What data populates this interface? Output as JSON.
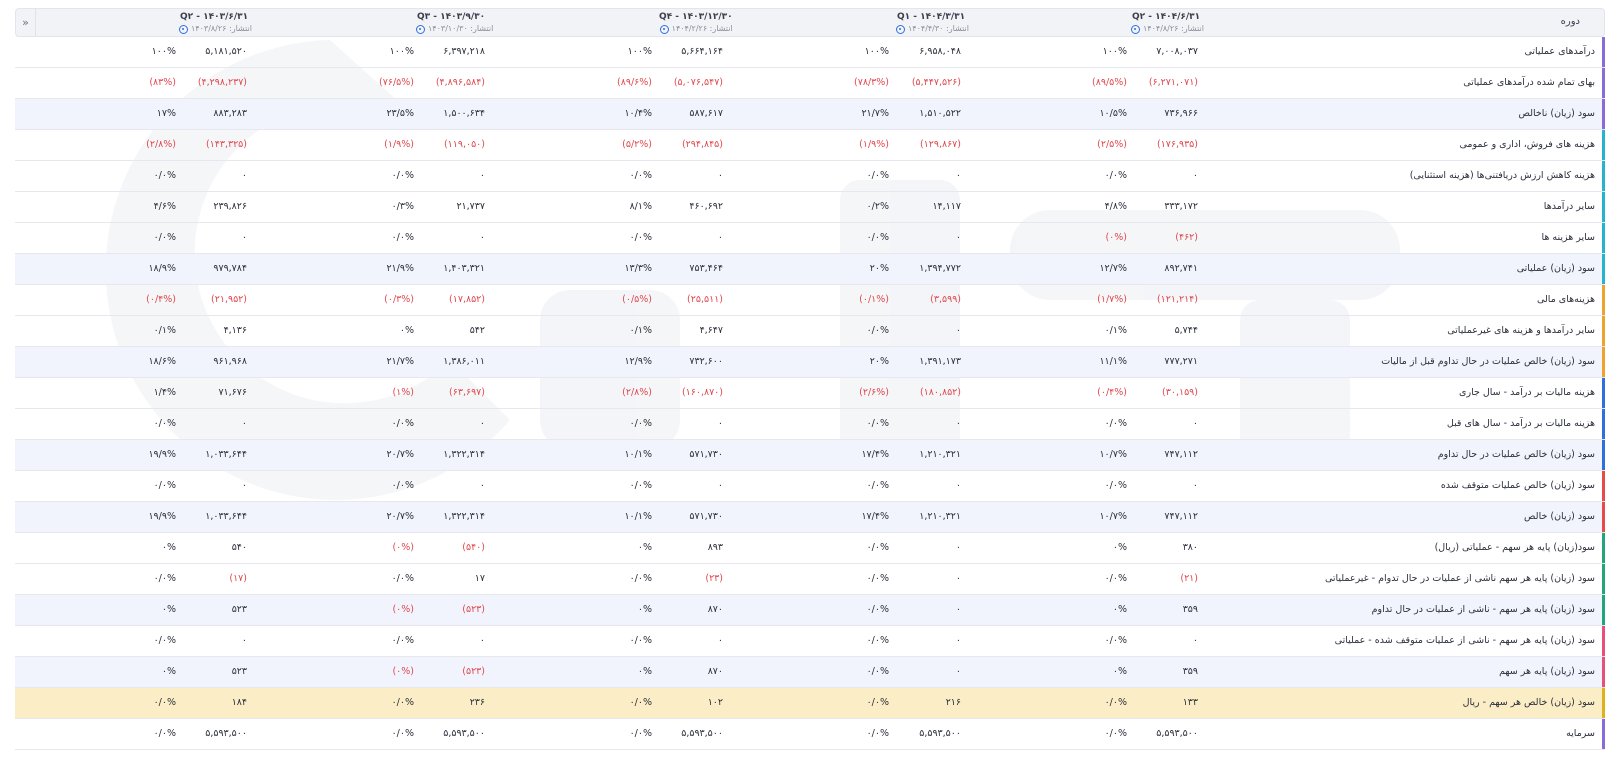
{
  "header": {
    "collapse_glyph": "»",
    "period_label": "دوره",
    "periods": [
      {
        "title": "Q۲ - ۱۴۰۴/۶/۳۱",
        "published": "انتشار: ۱۴۰۴/۸/۲۶"
      },
      {
        "title": "Q۱ - ۱۴۰۴/۳/۳۱",
        "published": "انتشار: ۱۴۰۴/۴/۳۰"
      },
      {
        "title": "Q۴ - ۱۴۰۳/۱۲/۳۰",
        "published": "انتشار: ۱۴۰۴/۲/۲۶"
      },
      {
        "title": "Q۳ - ۱۴۰۳/۹/۳۰",
        "published": "انتشار: ۱۴۰۳/۱۰/۳۰"
      },
      {
        "title": "Q۲ - ۱۴۰۳/۶/۳۱",
        "published": "انتشار: ۱۴۰۳/۸/۲۶"
      }
    ]
  },
  "colors": {
    "negative": "#e0484e",
    "alt_row": "#f1f4fd",
    "highlight_row": "#fbeec6",
    "publish_icon": "#2f6fe0"
  },
  "rows": [
    {
      "label": "درآمدهای عملیاتی",
      "bar": "#8b6bd9",
      "style": "",
      "cells": [
        [
          "۷,۰۰۸,۰۳۷",
          "۱۰۰%"
        ],
        [
          "۶,۹۵۸,۰۴۸",
          "۱۰۰%"
        ],
        [
          "۵,۶۶۴,۱۶۴",
          "۱۰۰%"
        ],
        [
          "۶,۳۹۷,۲۱۸",
          "۱۰۰%"
        ],
        [
          "۵,۱۸۱,۵۲۰",
          "۱۰۰%"
        ]
      ]
    },
    {
      "label": "بهای تمام شده درآمدهای عملیاتی",
      "bar": "#8b6bd9",
      "style": "",
      "cells": [
        [
          "(۶,۲۷۱,۰۷۱)",
          "(۸۹/۵%)"
        ],
        [
          "(۵,۴۴۷,۵۲۶)",
          "(۷۸/۳%)"
        ],
        [
          "(۵,۰۷۶,۵۴۷)",
          "(۸۹/۶%)"
        ],
        [
          "(۴,۸۹۶,۵۸۴)",
          "(۷۶/۵%)"
        ],
        [
          "(۴,۲۹۸,۲۳۷)",
          "(۸۳%)"
        ]
      ]
    },
    {
      "label": "سود (زیان) ناخالص",
      "bar": "#8b6bd9",
      "style": "alt",
      "cells": [
        [
          "۷۳۶,۹۶۶",
          "۱۰/۵%"
        ],
        [
          "۱,۵۱۰,۵۲۲",
          "۲۱/۷%"
        ],
        [
          "۵۸۷,۶۱۷",
          "۱۰/۴%"
        ],
        [
          "۱,۵۰۰,۶۳۴",
          "۲۳/۵%"
        ],
        [
          "۸۸۳,۲۸۳",
          "۱۷%"
        ]
      ]
    },
    {
      "label": "هزینه های فروش، اداری و عمومی",
      "bar": "#26b3d0",
      "style": "",
      "cells": [
        [
          "(۱۷۶,۹۳۵)",
          "(۲/۵%)"
        ],
        [
          "(۱۲۹,۸۶۷)",
          "(۱/۹%)"
        ],
        [
          "(۲۹۴,۸۴۵)",
          "(۵/۲%)"
        ],
        [
          "(۱۱۹,۰۵۰)",
          "(۱/۹%)"
        ],
        [
          "(۱۴۳,۳۲۵)",
          "(۲/۸%)"
        ]
      ]
    },
    {
      "label": "هزینه کاهش ارزش دریافتنی‌ها (هزینه استثنایی)",
      "bar": "#26b3d0",
      "style": "",
      "cells": [
        [
          "۰",
          "۰/۰%"
        ],
        [
          "۰",
          "۰/۰%"
        ],
        [
          "۰",
          "۰/۰%"
        ],
        [
          "۰",
          "۰/۰%"
        ],
        [
          "۰",
          "۰/۰%"
        ]
      ]
    },
    {
      "label": "سایر درآمدها",
      "bar": "#26b3d0",
      "style": "",
      "cells": [
        [
          "۳۳۳,۱۷۲",
          "۴/۸%"
        ],
        [
          "۱۴,۱۱۷",
          "۰/۲%"
        ],
        [
          "۴۶۰,۶۹۲",
          "۸/۱%"
        ],
        [
          "۲۱,۷۳۷",
          "۰/۳%"
        ],
        [
          "۲۳۹,۸۲۶",
          "۴/۶%"
        ]
      ]
    },
    {
      "label": "سایر هزینه ها",
      "bar": "#26b3d0",
      "style": "",
      "cells": [
        [
          "(۴۶۲)",
          "(۰%)"
        ],
        [
          "۰",
          "۰/۰%"
        ],
        [
          "۰",
          "۰/۰%"
        ],
        [
          "۰",
          "۰/۰%"
        ],
        [
          "۰",
          "۰/۰%"
        ]
      ]
    },
    {
      "label": "سود (زیان) عملیاتی",
      "bar": "#26b3d0",
      "style": "alt",
      "cells": [
        [
          "۸۹۲,۷۴۱",
          "۱۲/۷%"
        ],
        [
          "۱,۳۹۴,۷۷۲",
          "۲۰%"
        ],
        [
          "۷۵۳,۴۶۴",
          "۱۳/۳%"
        ],
        [
          "۱,۴۰۳,۳۲۱",
          "۲۱/۹%"
        ],
        [
          "۹۷۹,۷۸۴",
          "۱۸/۹%"
        ]
      ]
    },
    {
      "label": "هزینه‌های مالی",
      "bar": "#f0a22e",
      "style": "",
      "cells": [
        [
          "(۱۲۱,۲۱۴)",
          "(۱/۷%)"
        ],
        [
          "(۳,۵۹۹)",
          "(۰/۱%)"
        ],
        [
          "(۲۵,۵۱۱)",
          "(۰/۵%)"
        ],
        [
          "(۱۷,۸۵۲)",
          "(۰/۳%)"
        ],
        [
          "(۲۱,۹۵۲)",
          "(۰/۴%)"
        ]
      ]
    },
    {
      "label": "سایر درآمدها و هزینه های غیرعملیاتی",
      "bar": "#f0a22e",
      "style": "",
      "cells": [
        [
          "۵,۷۴۴",
          "۰/۱%"
        ],
        [
          "۰",
          "۰/۰%"
        ],
        [
          "۴,۶۴۷",
          "۰/۱%"
        ],
        [
          "۵۴۲",
          "۰%"
        ],
        [
          "۴,۱۳۶",
          "۰/۱%"
        ]
      ]
    },
    {
      "label": "سود (زیان) خالص عملیات در حال تداوم قبل از مالیات",
      "bar": "#f0a22e",
      "style": "alt",
      "cells": [
        [
          "۷۷۷,۲۷۱",
          "۱۱/۱%"
        ],
        [
          "۱,۳۹۱,۱۷۳",
          "۲۰%"
        ],
        [
          "۷۳۲,۶۰۰",
          "۱۲/۹%"
        ],
        [
          "۱,۳۸۶,۰۱۱",
          "۲۱/۷%"
        ],
        [
          "۹۶۱,۹۶۸",
          "۱۸/۶%"
        ]
      ]
    },
    {
      "label": "هزینه مالیات بر درآمد - سال جاری",
      "bar": "#2f6fe0",
      "style": "",
      "cells": [
        [
          "(۳۰,۱۵۹)",
          "(۰/۴%)"
        ],
        [
          "(۱۸۰,۸۵۲)",
          "(۲/۶%)"
        ],
        [
          "(۱۶۰,۸۷۰)",
          "(۲/۸%)"
        ],
        [
          "(۶۳,۶۹۷)",
          "(۱%)"
        ],
        [
          "۷۱,۶۷۶",
          "۱/۴%"
        ]
      ]
    },
    {
      "label": "هزینه مالیات بر درآمد - سال های قبل",
      "bar": "#2f6fe0",
      "style": "",
      "cells": [
        [
          "۰",
          "۰/۰%"
        ],
        [
          "۰",
          "۰/۰%"
        ],
        [
          "۰",
          "۰/۰%"
        ],
        [
          "۰",
          "۰/۰%"
        ],
        [
          "۰",
          "۰/۰%"
        ]
      ]
    },
    {
      "label": "سود (زیان) خالص عملیات در حال تداوم",
      "bar": "#2f6fe0",
      "style": "alt",
      "cells": [
        [
          "۷۴۷,۱۱۲",
          "۱۰/۷%"
        ],
        [
          "۱,۲۱۰,۳۲۱",
          "۱۷/۴%"
        ],
        [
          "۵۷۱,۷۳۰",
          "۱۰/۱%"
        ],
        [
          "۱,۳۲۲,۳۱۴",
          "۲۰/۷%"
        ],
        [
          "۱,۰۳۳,۶۴۴",
          "۱۹/۹%"
        ]
      ]
    },
    {
      "label": "سود (زیان) خالص عملیات متوقف شده",
      "bar": "#e84a4a",
      "style": "",
      "cells": [
        [
          "۰",
          "۰/۰%"
        ],
        [
          "۰",
          "۰/۰%"
        ],
        [
          "۰",
          "۰/۰%"
        ],
        [
          "۰",
          "۰/۰%"
        ],
        [
          "۰",
          "۰/۰%"
        ]
      ]
    },
    {
      "label": "سود (زیان) خالص",
      "bar": "#e84a4a",
      "style": "alt",
      "cells": [
        [
          "۷۴۷,۱۱۲",
          "۱۰/۷%"
        ],
        [
          "۱,۲۱۰,۳۲۱",
          "۱۷/۴%"
        ],
        [
          "۵۷۱,۷۳۰",
          "۱۰/۱%"
        ],
        [
          "۱,۳۲۲,۳۱۴",
          "۲۰/۷%"
        ],
        [
          "۱,۰۳۳,۶۴۴",
          "۱۹/۹%"
        ]
      ]
    },
    {
      "label": "سود(زیان) پایه هر سهم - عملیاتی (ریال)",
      "bar": "#1fa67a",
      "style": "",
      "cells": [
        [
          "۳۸۰",
          "۰%"
        ],
        [
          "۰",
          "۰/۰%"
        ],
        [
          "۸۹۳",
          "۰%"
        ],
        [
          "(۵۴۰)",
          "(۰%)"
        ],
        [
          "۵۴۰",
          "۰%"
        ]
      ]
    },
    {
      "label": "سود (زیان) پایه هر سهم ناشی از عملیات در حال تدوام - غیرعملیاتی",
      "bar": "#1fa67a",
      "style": "",
      "cells": [
        [
          "(۲۱)",
          "۰/۰%"
        ],
        [
          "۰",
          "۰/۰%"
        ],
        [
          "(۲۳)",
          "۰/۰%"
        ],
        [
          "۱۷",
          "۰/۰%"
        ],
        [
          "(۱۷)",
          "۰/۰%"
        ]
      ]
    },
    {
      "label": "سود (زیان) پایه هر سهم - ناشی از عملیات در حال تداوم",
      "bar": "#1fa67a",
      "style": "alt",
      "cells": [
        [
          "۳۵۹",
          "۰%"
        ],
        [
          "۰",
          "۰/۰%"
        ],
        [
          "۸۷۰",
          "۰%"
        ],
        [
          "(۵۲۳)",
          "(۰%)"
        ],
        [
          "۵۲۳",
          "۰%"
        ]
      ]
    },
    {
      "label": "سود (زیان) پایه هر سهم - ناشی از عملیات متوقف شده - عملیاتی",
      "bar": "#e8507a",
      "style": "",
      "cells": [
        [
          "۰",
          "۰/۰%"
        ],
        [
          "۰",
          "۰/۰%"
        ],
        [
          "۰",
          "۰/۰%"
        ],
        [
          "۰",
          "۰/۰%"
        ],
        [
          "۰",
          "۰/۰%"
        ]
      ]
    },
    {
      "label": "سود (زیان) پایه هر سهم",
      "bar": "#e8507a",
      "style": "alt",
      "cells": [
        [
          "۳۵۹",
          "۰%"
        ],
        [
          "۰",
          "۰/۰%"
        ],
        [
          "۸۷۰",
          "۰%"
        ],
        [
          "(۵۲۳)",
          "(۰%)"
        ],
        [
          "۵۲۳",
          "۰%"
        ]
      ]
    },
    {
      "label": "سود (زیان) خالص هر سهم - ریال",
      "bar": "#e0b21a",
      "style": "hl",
      "cells": [
        [
          "۱۳۳",
          "۰/۰%"
        ],
        [
          "۲۱۶",
          "۰/۰%"
        ],
        [
          "۱۰۲",
          "۰/۰%"
        ],
        [
          "۲۳۶",
          "۰/۰%"
        ],
        [
          "۱۸۴",
          "۰/۰%"
        ]
      ]
    },
    {
      "label": "سرمایه",
      "bar": "#8b6bd9",
      "style": "",
      "cells": [
        [
          "۵,۵۹۳,۵۰۰",
          "۰/۰%"
        ],
        [
          "۵,۵۹۳,۵۰۰",
          "۰/۰%"
        ],
        [
          "۵,۵۹۳,۵۰۰",
          "۰/۰%"
        ],
        [
          "۵,۵۹۳,۵۰۰",
          "۰/۰%"
        ],
        [
          "۵,۵۹۳,۵۰۰",
          "۰/۰%"
        ]
      ]
    }
  ]
}
